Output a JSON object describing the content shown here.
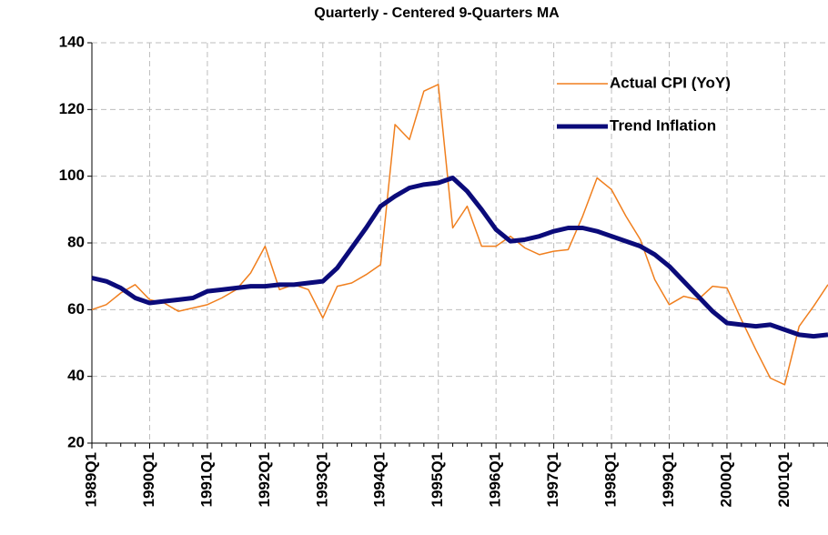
{
  "chart_data": {
    "type": "line",
    "title": "Quarterly - Centered 9-Quarters MA",
    "categories": [
      "1989Q1",
      null,
      null,
      null,
      "1990Q1",
      null,
      null,
      null,
      "1991Q1",
      null,
      null,
      null,
      "1992Q1",
      null,
      null,
      null,
      "1993Q1",
      null,
      null,
      null,
      "1994Q1",
      null,
      null,
      null,
      "1995Q1",
      null,
      null,
      null,
      "1996Q1",
      null,
      null,
      null,
      "1997Q1",
      null,
      null,
      null,
      "1998Q1",
      null,
      null,
      null,
      "1999Q1",
      null,
      null,
      null,
      "2000Q1",
      null,
      null,
      null,
      "2001Q1",
      null,
      null,
      null
    ],
    "series": [
      {
        "name": "Actual CPI (YoY)",
        "color": "#f07f1e",
        "width": 1.5,
        "values": [
          60,
          61.5,
          65,
          67.5,
          63,
          62,
          59.5,
          60.5,
          61.5,
          63.5,
          66,
          71,
          79,
          66,
          67.5,
          66,
          57.5,
          67,
          68,
          70.5,
          73.5,
          115.5,
          111,
          125.5,
          127.5,
          84.5,
          91,
          79,
          79,
          82,
          78.5,
          76.5,
          77.5,
          78,
          88,
          99.5,
          96,
          88,
          81,
          69,
          61.5,
          64,
          63,
          67,
          66.5,
          57,
          48,
          39.5,
          37.5,
          55,
          61,
          67.5
        ]
      },
      {
        "name": "Trend Inflation",
        "color": "#0b0b7a",
        "width": 5,
        "values": [
          69.5,
          68.5,
          66.5,
          63.5,
          62,
          62.5,
          63,
          63.5,
          65.5,
          66,
          66.5,
          67,
          67,
          67.5,
          67.5,
          68,
          68.5,
          72.5,
          78.5,
          84.5,
          91,
          94,
          96.5,
          97.5,
          98,
          99.5,
          95.5,
          90,
          84,
          80.5,
          81,
          82,
          83.5,
          84.5,
          84.5,
          83.5,
          82,
          80.5,
          79,
          76.5,
          73,
          68.5,
          64,
          59.5,
          56,
          55.5,
          55,
          55.5,
          54,
          52.5,
          52,
          52.5
        ]
      }
    ],
    "ylim": [
      20,
      140
    ],
    "yticks": [
      20,
      40,
      60,
      80,
      100,
      120,
      140
    ],
    "grid": true,
    "legend": "upper right"
  }
}
